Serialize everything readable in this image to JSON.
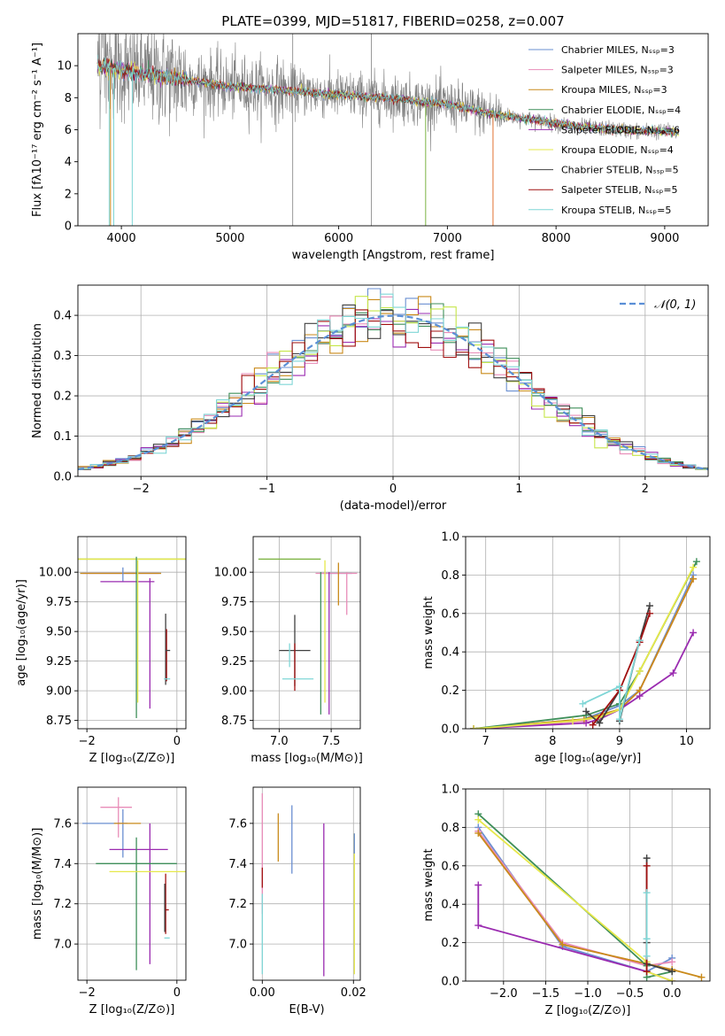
{
  "chart_data": [
    {
      "id": "spectrum",
      "type": "line",
      "title": "PLATE=0399, MJD=51817, FIBERID=0258, z=0.007",
      "xlabel": "wavelength [Angstrom, rest frame]",
      "ylabel": "Flux [fλ10⁻¹⁷ erg cm⁻² s⁻¹ A⁻¹]",
      "xlim": [
        3600,
        9400
      ],
      "ylim": [
        0,
        12
      ],
      "xticks": [
        4000,
        5000,
        6000,
        7000,
        8000,
        9000
      ],
      "yticks": [
        0,
        2,
        4,
        6,
        8,
        10
      ],
      "grid": false,
      "legend_position": "top-right",
      "data_color": "#808080",
      "continuum": {
        "x": [
          3780,
          3900,
          4000,
          4100,
          4200,
          4400,
          4600,
          4800,
          5000,
          5200,
          5400,
          5600,
          5800,
          6000,
          6200,
          6400,
          6600,
          6800,
          7000,
          7200,
          7400,
          7600,
          7800,
          8000,
          8200,
          8400,
          8600,
          8800,
          9000,
          9130
        ],
        "y": [
          10.0,
          9.9,
          9.7,
          9.6,
          9.5,
          9.3,
          9.1,
          8.9,
          8.7,
          8.6,
          8.5,
          8.4,
          8.3,
          8.2,
          8.1,
          8.0,
          7.9,
          7.7,
          7.6,
          7.3,
          7.0,
          6.8,
          6.6,
          6.4,
          6.2,
          6.1,
          6.0,
          5.9,
          5.9,
          5.85
        ]
      },
      "series": [
        {
          "name": "Chabrier MILES, Nₛₛₚ=3",
          "color": "#6a8fd1"
        },
        {
          "name": "Salpeter MILES, Nₛₛₚ=3",
          "color": "#e88cb8"
        },
        {
          "name": "Kroupa MILES, Nₛₛₚ=3",
          "color": "#c98a1a"
        },
        {
          "name": "Chabrier ELODIE, Nₛₛₚ=4",
          "color": "#3f8f5a"
        },
        {
          "name": "Salpeter ELODIE, Nₛₛₚ=6",
          "color": "#9a2bb0"
        },
        {
          "name": "Kroupa ELODIE, Nₛₛₚ=4",
          "color": "#e6e84a"
        },
        {
          "name": "Chabrier STELIB, Nₛₛₚ=5",
          "color": "#404040"
        },
        {
          "name": "Salpeter STELIB, Nₛₛₚ=5",
          "color": "#a01010"
        },
        {
          "name": "Kroupa STELIB, Nₛₛₚ=5",
          "color": "#7fd6d6"
        }
      ]
    },
    {
      "id": "residuals",
      "type": "histogram",
      "xlabel": "(data-model)/error",
      "ylabel": "Normed distribution",
      "xlim": [
        -2.5,
        2.5
      ],
      "ylim": [
        0,
        0.475
      ],
      "xticks": [
        -2,
        -1,
        0,
        1,
        2
      ],
      "yticks": [
        0.0,
        0.1,
        0.2,
        0.3,
        0.4
      ],
      "grid": true,
      "bin_width": 0.1,
      "legend": {
        "name": "𝒩(0, 1)",
        "color": "#5b8fd6",
        "style": "dashed",
        "position": "top-right"
      }
    },
    {
      "id": "age-vs-Z",
      "type": "errorbar",
      "xlabel": "Z [log₁₀(Z/Z⊙)]",
      "ylabel": "age  [log₁₀(age/yr)]",
      "xlim": [
        -2.2,
        0.2
      ],
      "ylim": [
        8.68,
        10.3
      ],
      "xticks": [
        -2,
        0
      ],
      "yticks": [
        8.75,
        9.0,
        9.25,
        9.5,
        9.75,
        10.0
      ],
      "grid": true,
      "points": [
        {
          "x": -1.6,
          "y": 10.11,
          "xerr": 1.8,
          "yerr": 0.0,
          "color": "#7cb342"
        },
        {
          "x": -1.6,
          "y": 10.11,
          "xerr": 1.8,
          "yerr": 0.0,
          "color": "#e6e84a"
        },
        {
          "x": -1.25,
          "y": 9.99,
          "xerr": 0.9,
          "yerr": 0.0,
          "color": "#6a8fd1"
        },
        {
          "x": -1.25,
          "y": 9.99,
          "xerr": 0.85,
          "yerr": 0.0,
          "color": "#e88cb8"
        },
        {
          "x": -1.25,
          "y": 9.99,
          "xerr": 0.9,
          "yerr": 0.0,
          "color": "#c98a1a"
        },
        {
          "x": -1.2,
          "y": 9.98,
          "xerr": 0.0,
          "yerr": 0.06,
          "color": "#6a8fd1"
        },
        {
          "x": -1.1,
          "y": 9.92,
          "xerr": 0.6,
          "yerr": 0.0,
          "color": "#9a2bb0"
        },
        {
          "x": -0.9,
          "y": 9.45,
          "xerr": 0.0,
          "yerr": 0.68,
          "color": "#3f8f5a"
        },
        {
          "x": -0.87,
          "y": 9.5,
          "xerr": 0.0,
          "yerr": 0.6,
          "color": "#e6e84a"
        },
        {
          "x": -0.6,
          "y": 9.4,
          "xerr": 0.0,
          "yerr": 0.55,
          "color": "#9a2bb0"
        },
        {
          "x": -0.25,
          "y": 9.35,
          "xerr": 0.0,
          "yerr": 0.3,
          "color": "#404040"
        },
        {
          "x": -0.23,
          "y": 9.3,
          "xerr": 0.0,
          "yerr": 0.22,
          "color": "#a01010"
        },
        {
          "x": -0.2,
          "y": 9.34,
          "xerr": 0.05,
          "yerr": 0.0,
          "color": "#404040"
        },
        {
          "x": -0.22,
          "y": 9.1,
          "xerr": 0.07,
          "yerr": 0.0,
          "color": "#7fd6d6"
        }
      ]
    },
    {
      "id": "age-vs-mass",
      "type": "errorbar",
      "xlabel": "mass [log₁₀(M/M⊙)]",
      "ylabel": "",
      "xlim": [
        6.75,
        7.78
      ],
      "ylim": [
        8.68,
        10.3
      ],
      "xticks": [
        7.0,
        7.5
      ],
      "yticks": [
        8.75,
        9.0,
        9.25,
        9.5,
        9.75,
        10.0
      ],
      "grid": true,
      "points": [
        {
          "x": 7.1,
          "y": 10.11,
          "xerr": 0.3,
          "yerr": 0.0,
          "color": "#7cb342"
        },
        {
          "x": 7.55,
          "y": 9.99,
          "xerr": 0.15,
          "yerr": 0.0,
          "color": "#6a8fd1"
        },
        {
          "x": 7.55,
          "y": 9.99,
          "xerr": 0.2,
          "yerr": 0.0,
          "color": "#e88cb8"
        },
        {
          "x": 7.65,
          "y": 9.82,
          "xerr": 0.0,
          "yerr": 0.18,
          "color": "#e88cb8"
        },
        {
          "x": 7.57,
          "y": 9.9,
          "xerr": 0.0,
          "yerr": 0.18,
          "color": "#c98a1a"
        },
        {
          "x": 7.44,
          "y": 9.5,
          "xerr": 0.0,
          "yerr": 0.6,
          "color": "#e6e84a"
        },
        {
          "x": 7.4,
          "y": 9.4,
          "xerr": 0.0,
          "yerr": 0.6,
          "color": "#3f8f5a"
        },
        {
          "x": 7.48,
          "y": 9.4,
          "xerr": 0.0,
          "yerr": 0.6,
          "color": "#9a2bb0"
        },
        {
          "x": 7.15,
          "y": 9.34,
          "xerr": 0.15,
          "yerr": 0.3,
          "color": "#404040"
        },
        {
          "x": 7.15,
          "y": 9.2,
          "xerr": 0.0,
          "yerr": 0.2,
          "color": "#a01010"
        },
        {
          "x": 7.18,
          "y": 9.1,
          "xerr": 0.15,
          "yerr": 0.0,
          "color": "#7fd6d6"
        },
        {
          "x": 7.1,
          "y": 9.3,
          "xerr": 0.0,
          "yerr": 0.1,
          "color": "#7fd6d6"
        }
      ]
    },
    {
      "id": "mw-vs-age",
      "type": "line",
      "xlabel": "age  [log₁₀(age/yr)]",
      "ylabel": "mass weight",
      "xlim": [
        6.7,
        10.35
      ],
      "ylim": [
        0,
        1.0
      ],
      "xticks": [
        7,
        8,
        9,
        10
      ],
      "yticks": [
        0.0,
        0.2,
        0.4,
        0.6,
        0.8,
        1.0
      ],
      "grid": true,
      "series": [
        {
          "color": "#6a8fd1",
          "x": [
            6.82,
            8.47,
            9.0,
            9.3,
            10.1
          ],
          "y": [
            0.0,
            0.05,
            0.12,
            0.2,
            0.8
          ]
        },
        {
          "color": "#e88cb8",
          "x": [
            6.82,
            8.47,
            9.0,
            9.3,
            10.1
          ],
          "y": [
            0.0,
            0.04,
            0.1,
            0.2,
            0.78
          ]
        },
        {
          "color": "#c98a1a",
          "x": [
            6.82,
            8.47,
            9.0,
            9.3,
            10.1
          ],
          "y": [
            0.0,
            0.05,
            0.1,
            0.2,
            0.78
          ]
        },
        {
          "color": "#3f8f5a",
          "x": [
            6.82,
            8.5,
            9.0,
            9.3,
            10.15
          ],
          "y": [
            0.0,
            0.07,
            0.13,
            0.3,
            0.87
          ]
        },
        {
          "color": "#9a2bb0",
          "x": [
            6.82,
            8.5,
            8.7,
            9.0,
            9.3,
            9.8,
            10.1
          ],
          "y": [
            0.0,
            0.03,
            0.05,
            0.1,
            0.17,
            0.29,
            0.5
          ]
        },
        {
          "color": "#e6e84a",
          "x": [
            6.82,
            8.3,
            8.7,
            9.0,
            9.3,
            10.1
          ],
          "y": [
            0.0,
            0.04,
            0.06,
            0.1,
            0.3,
            0.84
          ]
        },
        {
          "color": "#404040",
          "x": [
            8.5,
            8.7,
            9.0,
            9.0,
            9.3,
            9.45
          ],
          "y": [
            0.09,
            0.03,
            0.2,
            0.04,
            0.46,
            0.64
          ]
        },
        {
          "color": "#a01010",
          "x": [
            8.6,
            9.0,
            9.3,
            9.45
          ],
          "y": [
            0.02,
            0.2,
            0.45,
            0.6
          ]
        },
        {
          "color": "#7fd6d6",
          "x": [
            8.45,
            9.0,
            9.0,
            9.3
          ],
          "y": [
            0.13,
            0.22,
            0.05,
            0.46
          ]
        }
      ]
    },
    {
      "id": "mass-vs-Z",
      "type": "errorbar",
      "xlabel": "Z [log₁₀(Z/Z⊙)]",
      "ylabel": "mass [log₁₀(M/M⊙)]",
      "xlim": [
        -2.2,
        0.2
      ],
      "ylim": [
        6.82,
        7.78
      ],
      "xticks": [
        -2,
        0
      ],
      "yticks": [
        7.0,
        7.2,
        7.4,
        7.6
      ],
      "grid": true,
      "points": [
        {
          "x": -1.35,
          "y": 7.68,
          "xerr": 0.35,
          "yerr": 0.0,
          "color": "#e88cb8"
        },
        {
          "x": -1.3,
          "y": 7.63,
          "xerr": 0.0,
          "yerr": 0.1,
          "color": "#e88cb8"
        },
        {
          "x": -1.6,
          "y": 7.6,
          "xerr": 0.5,
          "yerr": 0.0,
          "color": "#6a8fd1"
        },
        {
          "x": -1.2,
          "y": 7.55,
          "xerr": 0.0,
          "yerr": 0.12,
          "color": "#6a8fd1"
        },
        {
          "x": -1.1,
          "y": 7.6,
          "xerr": 0.3,
          "yerr": 0.0,
          "color": "#c98a1a"
        },
        {
          "x": -0.85,
          "y": 7.47,
          "xerr": 0.65,
          "yerr": 0.0,
          "color": "#9a2bb0"
        },
        {
          "x": -0.6,
          "y": 7.25,
          "xerr": 0.0,
          "yerr": 0.35,
          "color": "#9a2bb0"
        },
        {
          "x": -0.9,
          "y": 7.4,
          "xerr": 0.9,
          "yerr": 0.0,
          "color": "#3f8f5a"
        },
        {
          "x": -0.9,
          "y": 7.2,
          "xerr": 0.0,
          "yerr": 0.33,
          "color": "#3f8f5a"
        },
        {
          "x": -0.6,
          "y": 7.36,
          "xerr": 0.9,
          "yerr": 0.0,
          "color": "#e6e84a"
        },
        {
          "x": -0.25,
          "y": 7.2,
          "xerr": 0.0,
          "yerr": 0.15,
          "color": "#a01010"
        },
        {
          "x": -0.23,
          "y": 7.17,
          "xerr": 0.05,
          "yerr": 0.0,
          "color": "#a01010"
        },
        {
          "x": -0.27,
          "y": 7.18,
          "xerr": 0.0,
          "yerr": 0.12,
          "color": "#404040"
        },
        {
          "x": -0.22,
          "y": 7.03,
          "xerr": 0.06,
          "yerr": 0.0,
          "color": "#7fd6d6"
        }
      ]
    },
    {
      "id": "mass-vs-ebv",
      "type": "errorbar",
      "xlabel": "E(B-V)",
      "ylabel": "",
      "xlim": [
        -0.002,
        0.0215
      ],
      "ylim": [
        6.82,
        7.78
      ],
      "xticks": [
        0.0,
        0.02
      ],
      "yticks": [
        7.0,
        7.2,
        7.4,
        7.6
      ],
      "grid": true,
      "points": [
        {
          "x": 0.0,
          "y": 7.45,
          "xerr": 0.0,
          "yerr": 0.3,
          "color": "#e88cb8"
        },
        {
          "x": 0.0,
          "y": 7.33,
          "xerr": 0.0,
          "yerr": 0.05,
          "color": "#a01010"
        },
        {
          "x": 0.0,
          "y": 7.05,
          "xerr": 0.0,
          "yerr": 0.2,
          "color": "#7fd6d6"
        },
        {
          "x": 0.0035,
          "y": 7.53,
          "xerr": 0.0,
          "yerr": 0.12,
          "color": "#c98a1a"
        },
        {
          "x": 0.0065,
          "y": 7.52,
          "xerr": 0.0,
          "yerr": 0.17,
          "color": "#6a8fd1"
        },
        {
          "x": 0.0135,
          "y": 7.22,
          "xerr": 0.0,
          "yerr": 0.38,
          "color": "#9a2bb0"
        },
        {
          "x": 0.0202,
          "y": 7.2,
          "xerr": 0.0,
          "yerr": 0.35,
          "color": "#e6e84a"
        },
        {
          "x": 0.0202,
          "y": 7.5,
          "xerr": 0.0,
          "yerr": 0.05,
          "color": "#6a8fd1"
        }
      ]
    },
    {
      "id": "mw-vs-Z",
      "type": "line",
      "xlabel": "Z [log₁₀(Z/Z⊙)]",
      "ylabel": "mass weight",
      "xlim": [
        -2.45,
        0.45
      ],
      "ylim": [
        0,
        1.0
      ],
      "xticks": [
        -2.0,
        -1.5,
        -1.0,
        -0.5,
        0.0
      ],
      "yticks": [
        0.0,
        0.2,
        0.4,
        0.6,
        0.8,
        1.0
      ],
      "grid": true,
      "series": [
        {
          "color": "#6a8fd1",
          "x": [
            -2.3,
            -1.3,
            -0.3,
            0.0
          ],
          "y": [
            0.8,
            0.18,
            0.05,
            0.12
          ]
        },
        {
          "color": "#e88cb8",
          "x": [
            -2.3,
            -1.3,
            -0.3,
            0.0
          ],
          "y": [
            0.78,
            0.2,
            0.08,
            0.1
          ]
        },
        {
          "color": "#c98a1a",
          "x": [
            -2.3,
            -1.3,
            0.0,
            0.35
          ],
          "y": [
            0.77,
            0.19,
            0.06,
            0.02
          ]
        },
        {
          "color": "#3f8f5a",
          "x": [
            -2.3,
            -0.3,
            -0.3,
            0.0
          ],
          "y": [
            0.87,
            0.08,
            0.02,
            0.05
          ]
        },
        {
          "color": "#9a2bb0",
          "x": [
            -2.3,
            -2.3,
            -0.3,
            0.0
          ],
          "y": [
            0.5,
            0.29,
            0.05,
            0.0
          ]
        },
        {
          "color": "#e6e84a",
          "x": [
            -2.3,
            -0.3,
            -0.3,
            0.0
          ],
          "y": [
            0.84,
            0.1,
            0.05,
            0.0
          ]
        },
        {
          "color": "#404040",
          "x": [
            -0.3,
            -0.3,
            -0.3,
            0.0
          ],
          "y": [
            0.64,
            0.2,
            0.09,
            0.05
          ]
        },
        {
          "color": "#a01010",
          "x": [
            -0.3,
            -0.3
          ],
          "y": [
            0.6,
            0.05
          ]
        },
        {
          "color": "#7fd6d6",
          "x": [
            -0.3,
            -0.3,
            -0.3
          ],
          "y": [
            0.46,
            0.22,
            0.13
          ]
        }
      ]
    }
  ]
}
